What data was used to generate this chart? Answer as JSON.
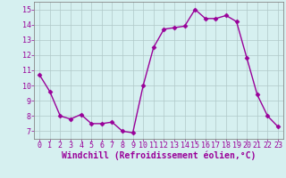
{
  "hours": [
    0,
    1,
    2,
    3,
    4,
    5,
    6,
    7,
    8,
    9,
    10,
    11,
    12,
    13,
    14,
    15,
    16,
    17,
    18,
    19,
    20,
    21,
    22,
    23
  ],
  "values": [
    10.7,
    9.6,
    8.0,
    7.8,
    8.1,
    7.5,
    7.5,
    7.6,
    7.0,
    6.9,
    10.0,
    12.5,
    13.7,
    13.8,
    13.9,
    15.0,
    14.4,
    14.4,
    14.6,
    14.2,
    11.8,
    9.4,
    8.0,
    7.3
  ],
  "line_color": "#990099",
  "marker": "D",
  "marker_size": 2.5,
  "xlabel": "Windchill (Refroidissement éolien,°C)",
  "xlabel_fontsize": 7,
  "ylabel_ticks": [
    7,
    8,
    9,
    10,
    11,
    12,
    13,
    14,
    15
  ],
  "ylim": [
    6.5,
    15.5
  ],
  "xlim": [
    -0.5,
    23.5
  ],
  "bg_color": "#d6f0f0",
  "grid_color": "#b0c8c8",
  "tick_fontsize": 6,
  "tick_color": "#990099",
  "line_width": 1.0
}
